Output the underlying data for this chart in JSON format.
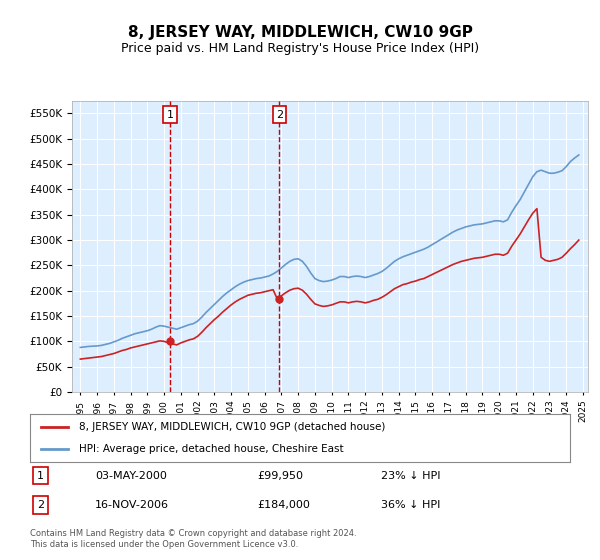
{
  "title": "8, JERSEY WAY, MIDDLEWICH, CW10 9GP",
  "subtitle": "Price paid vs. HM Land Registry's House Price Index (HPI)",
  "title_fontsize": 11,
  "subtitle_fontsize": 9,
  "background_color": "#ffffff",
  "plot_bg_color": "#ddeeff",
  "grid_color": "#ffffff",
  "ylabel": "",
  "ylim": [
    0,
    575000
  ],
  "yticks": [
    0,
    50000,
    100000,
    150000,
    200000,
    250000,
    300000,
    350000,
    400000,
    450000,
    500000,
    550000
  ],
  "xlim_start": 1994.5,
  "xlim_end": 2025.3,
  "xticks": [
    1995,
    1996,
    1997,
    1998,
    1999,
    2000,
    2001,
    2002,
    2003,
    2004,
    2005,
    2006,
    2007,
    2008,
    2009,
    2010,
    2011,
    2012,
    2013,
    2014,
    2015,
    2016,
    2017,
    2018,
    2019,
    2020,
    2021,
    2022,
    2023,
    2024,
    2025
  ],
  "sale1_x": 2000.34,
  "sale1_y": 99950,
  "sale1_label": "1",
  "sale1_date": "03-MAY-2000",
  "sale1_price": "£99,950",
  "sale1_hpi": "23% ↓ HPI",
  "sale2_x": 2006.88,
  "sale2_y": 184000,
  "sale2_label": "2",
  "sale2_date": "16-NOV-2006",
  "sale2_price": "£184,000",
  "sale2_hpi": "36% ↓ HPI",
  "hpi_color": "#6699cc",
  "price_color": "#cc2222",
  "vline_color": "#cc0000",
  "marker_color": "#cc2222",
  "legend_label_price": "8, JERSEY WAY, MIDDLEWICH, CW10 9GP (detached house)",
  "legend_label_hpi": "HPI: Average price, detached house, Cheshire East",
  "footer": "Contains HM Land Registry data © Crown copyright and database right 2024.\nThis data is licensed under the Open Government Licence v3.0.",
  "hpi_data_x": [
    1995.0,
    1995.25,
    1995.5,
    1995.75,
    1996.0,
    1996.25,
    1996.5,
    1996.75,
    1997.0,
    1997.25,
    1997.5,
    1997.75,
    1998.0,
    1998.25,
    1998.5,
    1998.75,
    1999.0,
    1999.25,
    1999.5,
    1999.75,
    2000.0,
    2000.25,
    2000.5,
    2000.75,
    2001.0,
    2001.25,
    2001.5,
    2001.75,
    2002.0,
    2002.25,
    2002.5,
    2002.75,
    2003.0,
    2003.25,
    2003.5,
    2003.75,
    2004.0,
    2004.25,
    2004.5,
    2004.75,
    2005.0,
    2005.25,
    2005.5,
    2005.75,
    2006.0,
    2006.25,
    2006.5,
    2006.75,
    2007.0,
    2007.25,
    2007.5,
    2007.75,
    2008.0,
    2008.25,
    2008.5,
    2008.75,
    2009.0,
    2009.25,
    2009.5,
    2009.75,
    2010.0,
    2010.25,
    2010.5,
    2010.75,
    2011.0,
    2011.25,
    2011.5,
    2011.75,
    2012.0,
    2012.25,
    2012.5,
    2012.75,
    2013.0,
    2013.25,
    2013.5,
    2013.75,
    2014.0,
    2014.25,
    2014.5,
    2014.75,
    2015.0,
    2015.25,
    2015.5,
    2015.75,
    2016.0,
    2016.25,
    2016.5,
    2016.75,
    2017.0,
    2017.25,
    2017.5,
    2017.75,
    2018.0,
    2018.25,
    2018.5,
    2018.75,
    2019.0,
    2019.25,
    2019.5,
    2019.75,
    2020.0,
    2020.25,
    2020.5,
    2020.75,
    2021.0,
    2021.25,
    2021.5,
    2021.75,
    2022.0,
    2022.25,
    2022.5,
    2022.75,
    2023.0,
    2023.25,
    2023.5,
    2023.75,
    2024.0,
    2024.25,
    2024.5,
    2024.75
  ],
  "hpi_data_y": [
    88000,
    89000,
    90000,
    90500,
    91000,
    92000,
    94000,
    96000,
    99000,
    102000,
    106000,
    109000,
    112000,
    115000,
    117000,
    119000,
    121000,
    124000,
    128000,
    131000,
    130000,
    128000,
    126000,
    124000,
    127000,
    130000,
    133000,
    135000,
    140000,
    148000,
    157000,
    165000,
    173000,
    181000,
    189000,
    196000,
    202000,
    208000,
    213000,
    217000,
    220000,
    222000,
    224000,
    225000,
    227000,
    229000,
    233000,
    238000,
    245000,
    252000,
    258000,
    262000,
    263000,
    258000,
    248000,
    235000,
    224000,
    220000,
    218000,
    219000,
    221000,
    224000,
    228000,
    228000,
    226000,
    228000,
    229000,
    228000,
    226000,
    228000,
    231000,
    234000,
    238000,
    244000,
    251000,
    258000,
    263000,
    267000,
    270000,
    273000,
    276000,
    279000,
    282000,
    286000,
    291000,
    296000,
    301000,
    306000,
    311000,
    316000,
    320000,
    323000,
    326000,
    328000,
    330000,
    331000,
    332000,
    334000,
    336000,
    338000,
    338000,
    336000,
    340000,
    355000,
    368000,
    380000,
    395000,
    410000,
    425000,
    435000,
    438000,
    435000,
    432000,
    432000,
    434000,
    437000,
    445000,
    455000,
    462000,
    468000
  ],
  "price_data_x": [
    1995.0,
    1995.25,
    1995.5,
    1995.75,
    1996.0,
    1996.25,
    1996.5,
    1996.75,
    1997.0,
    1997.25,
    1997.5,
    1997.75,
    1998.0,
    1998.25,
    1998.5,
    1998.75,
    1999.0,
    1999.25,
    1999.5,
    1999.75,
    2000.0,
    2000.25,
    2000.5,
    2000.75,
    2001.0,
    2001.25,
    2001.5,
    2001.75,
    2002.0,
    2002.25,
    2002.5,
    2002.75,
    2003.0,
    2003.25,
    2003.5,
    2003.75,
    2004.0,
    2004.25,
    2004.5,
    2004.75,
    2005.0,
    2005.25,
    2005.5,
    2005.75,
    2006.0,
    2006.25,
    2006.5,
    2006.75,
    2007.0,
    2007.25,
    2007.5,
    2007.75,
    2008.0,
    2008.25,
    2008.5,
    2008.75,
    2009.0,
    2009.25,
    2009.5,
    2009.75,
    2010.0,
    2010.25,
    2010.5,
    2010.75,
    2011.0,
    2011.25,
    2011.5,
    2011.75,
    2012.0,
    2012.25,
    2012.5,
    2012.75,
    2013.0,
    2013.25,
    2013.5,
    2013.75,
    2014.0,
    2014.25,
    2014.5,
    2014.75,
    2015.0,
    2015.25,
    2015.5,
    2015.75,
    2016.0,
    2016.25,
    2016.5,
    2016.75,
    2017.0,
    2017.25,
    2017.5,
    2017.75,
    2018.0,
    2018.25,
    2018.5,
    2018.75,
    2019.0,
    2019.25,
    2019.5,
    2019.75,
    2020.0,
    2020.25,
    2020.5,
    2020.75,
    2021.0,
    2021.25,
    2021.5,
    2021.75,
    2022.0,
    2022.25,
    2022.5,
    2022.75,
    2023.0,
    2023.25,
    2023.5,
    2023.75,
    2024.0,
    2024.25,
    2024.5,
    2024.75
  ],
  "price_data_y": [
    65000,
    66000,
    67000,
    68000,
    69000,
    70000,
    72000,
    74000,
    76000,
    79000,
    82000,
    84000,
    87000,
    89000,
    91000,
    93000,
    95000,
    97000,
    99000,
    101000,
    99950,
    97000,
    95000,
    93000,
    97000,
    100000,
    103000,
    105000,
    110000,
    118000,
    127000,
    135000,
    143000,
    150000,
    158000,
    165000,
    172000,
    178000,
    183000,
    187000,
    191000,
    193000,
    195000,
    196000,
    198000,
    200000,
    202000,
    184000,
    190000,
    196000,
    201000,
    204000,
    205000,
    201000,
    193000,
    183000,
    174000,
    171000,
    169000,
    170000,
    172000,
    175000,
    178000,
    178000,
    176000,
    178000,
    179000,
    178000,
    176000,
    178000,
    181000,
    183000,
    187000,
    192000,
    198000,
    204000,
    208000,
    212000,
    214000,
    217000,
    219000,
    222000,
    224000,
    228000,
    232000,
    236000,
    240000,
    244000,
    248000,
    252000,
    255000,
    258000,
    260000,
    262000,
    264000,
    265000,
    266000,
    268000,
    270000,
    272000,
    272000,
    270000,
    274000,
    288000,
    300000,
    312000,
    326000,
    340000,
    353000,
    362000,
    266000,
    260000,
    258000,
    260000,
    262000,
    266000,
    274000,
    283000,
    291000,
    300000
  ]
}
